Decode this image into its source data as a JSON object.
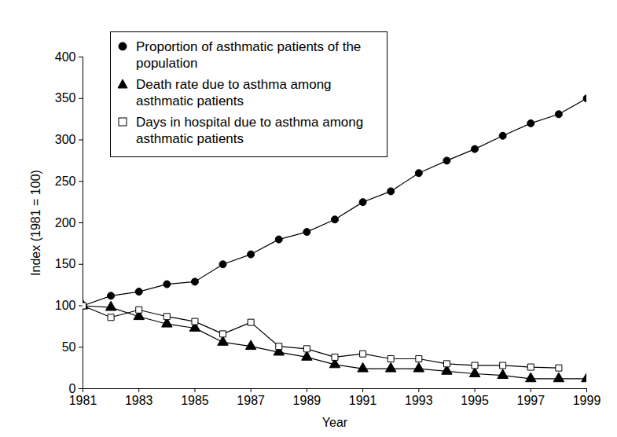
{
  "chart_data": {
    "type": "line",
    "x_label": "Year",
    "y_label": "Index (1981 = 100)",
    "x": [
      1981,
      1982,
      1983,
      1984,
      1985,
      1986,
      1987,
      1988,
      1989,
      1990,
      1991,
      1992,
      1993,
      1994,
      1995,
      1996,
      1997,
      1998,
      1999
    ],
    "series": [
      {
        "name": "Proportion of asthmatic patients of the population",
        "color": "#000000",
        "marker": "circle",
        "values": [
          100,
          112,
          117,
          126,
          129,
          150,
          162,
          180,
          189,
          204,
          225,
          238,
          260,
          275,
          289,
          305,
          320,
          331,
          350
        ]
      },
      {
        "name": "Death rate due to asthma among asthmatic patients",
        "color": "#000000",
        "marker": "triangle",
        "values": [
          100,
          98,
          87,
          78,
          73,
          56,
          51,
          44,
          38,
          29,
          24,
          24,
          24,
          21,
          18,
          16,
          12,
          12,
          12
        ]
      },
      {
        "name": "Days in hospital due to asthma among asthmatic patients",
        "color": "#000000",
        "marker": "square_open",
        "values": [
          100,
          86,
          95,
          87,
          81,
          66,
          80,
          51,
          48,
          38,
          42,
          36,
          36,
          30,
          28,
          28,
          26,
          25,
          null
        ]
      }
    ],
    "xlim": [
      1981,
      1999
    ],
    "xticks": [
      1981,
      1983,
      1985,
      1987,
      1989,
      1991,
      1993,
      1995,
      1997,
      1999
    ],
    "ylim": [
      0,
      400
    ],
    "yticks": [
      0,
      50,
      100,
      150,
      200,
      250,
      300,
      350,
      400
    ],
    "grid": false,
    "legend": "upper left"
  }
}
